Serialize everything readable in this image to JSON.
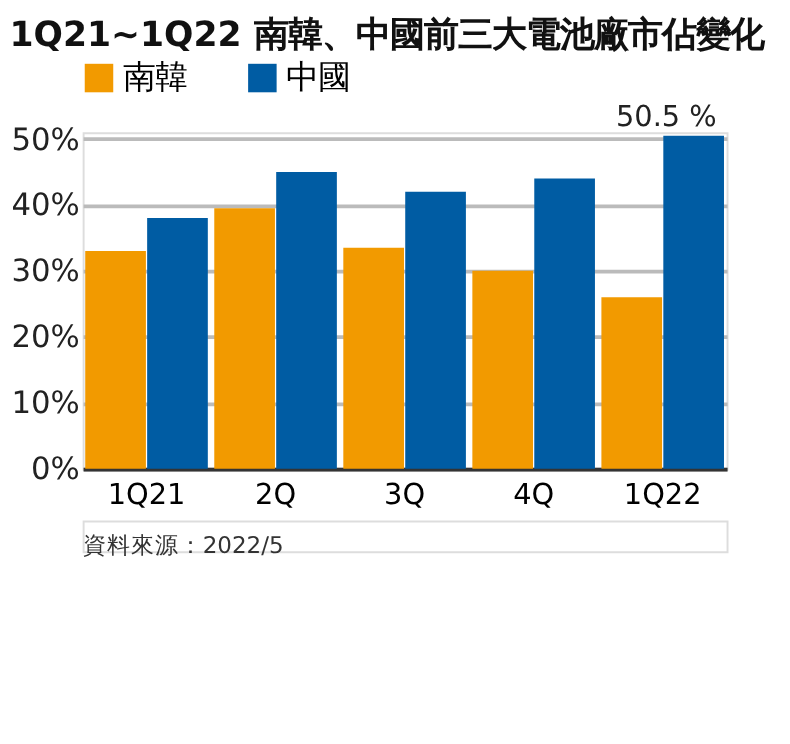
{
  "chart_data": {
    "type": "bar",
    "title": "1Q21~1Q22 南韓、中國前三大電池廠市佔變化",
    "categories": [
      "1Q21",
      "2Q",
      "3Q",
      "4Q",
      "1Q22"
    ],
    "series": [
      {
        "name": "南韓",
        "color": "#f29a00",
        "values": [
          33,
          39.5,
          33.5,
          30,
          26
        ]
      },
      {
        "name": "中國",
        "color": "#005ca3",
        "values": [
          38,
          45,
          42,
          44,
          50.5
        ],
        "value_labels": [
          null,
          null,
          null,
          null,
          "50.5 %"
        ]
      }
    ],
    "ylim": [
      0,
      51
    ],
    "yticks": [
      {
        "value": 0,
        "label": "0%"
      },
      {
        "value": 10,
        "label": "10%"
      },
      {
        "value": 20,
        "label": "20%"
      },
      {
        "value": 30,
        "label": "30%"
      },
      {
        "value": 40,
        "label": "40%"
      },
      {
        "value": 50,
        "label": "50%"
      }
    ],
    "grid": "y",
    "legend": "top",
    "annotations": [
      "資料來源：2022/5"
    ]
  }
}
